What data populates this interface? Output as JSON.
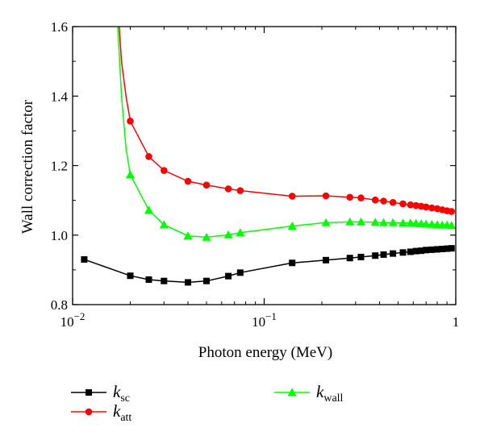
{
  "chart_data": {
    "type": "line",
    "xlabel": "Photon energy (MeV)",
    "ylabel": "Wall correction factor",
    "xscale": "log",
    "xlim": [
      0.01,
      1
    ],
    "ylim": [
      0.8,
      1.6
    ],
    "x_ticks": [
      {
        "value": 0.01,
        "base": "10",
        "exp": "−2"
      },
      {
        "value": 0.1,
        "base": "10",
        "exp": "−1"
      },
      {
        "value": 1,
        "base": "1",
        "exp": ""
      }
    ],
    "y_ticks": [
      "0.8",
      "1.0",
      "1.2",
      "1.4",
      "1.6"
    ],
    "grid": false,
    "legend_position": "bottom",
    "series": [
      {
        "name": "k_sc",
        "label_main": "k",
        "label_sub": "sc",
        "color": "#000000",
        "marker": "square",
        "x": [
          0.0115,
          0.02,
          0.025,
          0.03,
          0.04,
          0.05,
          0.065,
          0.075,
          0.14,
          0.21,
          0.28,
          0.32,
          0.38,
          0.42,
          0.47,
          0.53,
          0.58,
          0.62,
          0.66,
          0.7,
          0.75,
          0.8,
          0.85,
          0.9,
          0.95
        ],
        "values": [
          0.93,
          0.883,
          0.872,
          0.868,
          0.864,
          0.868,
          0.882,
          0.892,
          0.92,
          0.928,
          0.934,
          0.937,
          0.941,
          0.944,
          0.947,
          0.95,
          0.952,
          0.954,
          0.955,
          0.957,
          0.958,
          0.959,
          0.96,
          0.961,
          0.962
        ]
      },
      {
        "name": "k_att",
        "label_main": "k",
        "label_sub": "att",
        "color": "#ff0000",
        "marker": "circle",
        "x": [
          0.0175,
          0.018,
          0.019,
          0.02,
          0.025,
          0.03,
          0.04,
          0.05,
          0.065,
          0.075,
          0.14,
          0.21,
          0.28,
          0.32,
          0.38,
          0.42,
          0.47,
          0.53,
          0.58,
          0.62,
          0.66,
          0.7,
          0.75,
          0.8,
          0.85,
          0.9,
          0.95
        ],
        "values": [
          1.6,
          1.5,
          1.4,
          1.328,
          1.226,
          1.186,
          1.155,
          1.144,
          1.133,
          1.128,
          1.112,
          1.113,
          1.109,
          1.107,
          1.101,
          1.098,
          1.094,
          1.09,
          1.087,
          1.085,
          1.083,
          1.081,
          1.078,
          1.076,
          1.073,
          1.07,
          1.068
        ]
      },
      {
        "name": "k_wall",
        "label_main": "k",
        "label_sub": "wall",
        "color": "#00ff00",
        "marker": "triangle",
        "x": [
          0.0172,
          0.018,
          0.019,
          0.02,
          0.025,
          0.03,
          0.04,
          0.05,
          0.065,
          0.075,
          0.14,
          0.21,
          0.28,
          0.32,
          0.38,
          0.42,
          0.47,
          0.53,
          0.58,
          0.62,
          0.66,
          0.7,
          0.75,
          0.8,
          0.85,
          0.9,
          0.95
        ],
        "values": [
          1.6,
          1.4,
          1.25,
          1.174,
          1.072,
          1.03,
          0.998,
          0.994,
          1.001,
          1.007,
          1.026,
          1.036,
          1.038,
          1.038,
          1.037,
          1.036,
          1.036,
          1.035,
          1.035,
          1.034,
          1.033,
          1.032,
          1.031,
          1.03,
          1.029,
          1.029,
          1.028
        ],
        "marker_from_index": 3
      }
    ]
  }
}
